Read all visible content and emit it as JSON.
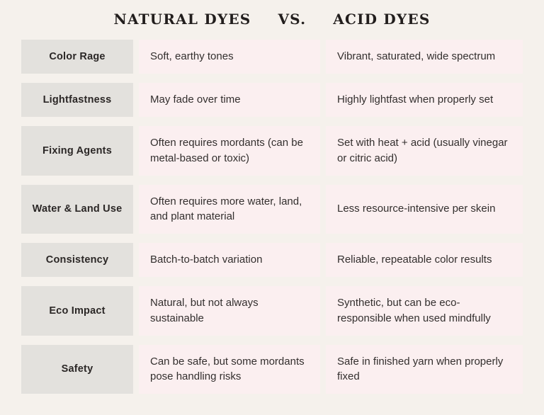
{
  "title": {
    "left": "NATURAL DYES",
    "vs": "VS.",
    "right": "ACID DYES"
  },
  "columns": {
    "natural": "NATURAL DYES",
    "acid": "ACID DYES"
  },
  "rows": [
    {
      "label": "Color Rage",
      "natural": "Soft, earthy tones",
      "acid": "Vibrant, saturated, wide spectrum"
    },
    {
      "label": "Lightfastness",
      "natural": "May fade over time",
      "acid": "Highly lightfast when properly set"
    },
    {
      "label": "Fixing Agents",
      "natural": "Often requires mordants (can be metal-based or toxic)",
      "acid": "Set with heat + acid (usually vinegar or citric acid)"
    },
    {
      "label": "Water & Land Use",
      "natural": "Often requires more water, land, and plant material",
      "acid": "Less resource-intensive per skein"
    },
    {
      "label": "Consistency",
      "natural": "Batch-to-batch variation",
      "acid": "Reliable, repeatable color results"
    },
    {
      "label": "Eco Impact",
      "natural": "Natural, but not always sustainable",
      "acid": "Synthetic, but can be eco-responsible when used mindfully"
    },
    {
      "label": "Safety",
      "natural": "Can be safe, but some mordants pose handling risks",
      "acid": "Safe in finished yarn when properly fixed"
    }
  ],
  "colors": {
    "page_bg": "#f5f1ec",
    "label_bg": "#e3e1dd",
    "cell_bg": "#fbeff0",
    "title_text": "#221e1d",
    "body_text": "#332f2e"
  }
}
